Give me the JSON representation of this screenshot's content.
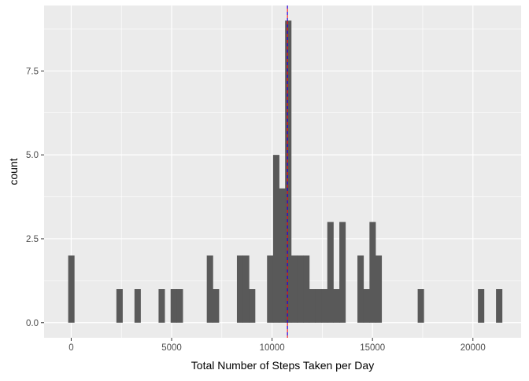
{
  "chart_data": {
    "type": "bar",
    "subtype": "histogram",
    "xlabel": "Total Number of Steps Taken per Day",
    "ylabel": "count",
    "xlim": [
      -1350,
      22400
    ],
    "ylim": [
      -0.45,
      9.45
    ],
    "x_ticks": [
      0,
      5000,
      10000,
      15000,
      20000
    ],
    "x_tick_labels": [
      "0",
      "5000",
      "10000",
      "15000",
      "20000"
    ],
    "y_ticks": [
      0,
      2.5,
      5,
      7.5
    ],
    "y_tick_labels": [
      "0.0",
      "2.5",
      "5.0",
      "7.5"
    ],
    "bin_width": 300,
    "bins": [
      {
        "x": 0,
        "count": 2
      },
      {
        "x": 2400,
        "count": 1
      },
      {
        "x": 3300,
        "count": 1
      },
      {
        "x": 4500,
        "count": 1
      },
      {
        "x": 5100,
        "count": 1
      },
      {
        "x": 5400,
        "count": 1
      },
      {
        "x": 6900,
        "count": 2
      },
      {
        "x": 7200,
        "count": 1
      },
      {
        "x": 8400,
        "count": 2
      },
      {
        "x": 8700,
        "count": 2
      },
      {
        "x": 9000,
        "count": 1
      },
      {
        "x": 9900,
        "count": 2
      },
      {
        "x": 10200,
        "count": 5
      },
      {
        "x": 10500,
        "count": 4
      },
      {
        "x": 10800,
        "count": 9
      },
      {
        "x": 11100,
        "count": 2
      },
      {
        "x": 11400,
        "count": 2
      },
      {
        "x": 11700,
        "count": 2
      },
      {
        "x": 12000,
        "count": 1
      },
      {
        "x": 12300,
        "count": 1
      },
      {
        "x": 12600,
        "count": 1
      },
      {
        "x": 12900,
        "count": 3
      },
      {
        "x": 13200,
        "count": 1
      },
      {
        "x": 13500,
        "count": 3
      },
      {
        "x": 14400,
        "count": 2
      },
      {
        "x": 14700,
        "count": 1
      },
      {
        "x": 15000,
        "count": 3
      },
      {
        "x": 15300,
        "count": 2
      },
      {
        "x": 17400,
        "count": 1
      },
      {
        "x": 20400,
        "count": 1
      },
      {
        "x": 21300,
        "count": 1
      }
    ],
    "reference_lines": [
      {
        "x": 10766,
        "color": "#ff0000",
        "style": "solid"
      },
      {
        "x": 10766,
        "color": "#0000ff",
        "style": "dashed"
      }
    ],
    "colors": {
      "panel_background": "#ebebeb",
      "grid": "#ffffff",
      "bar_fill": "#595959",
      "axis_text": "#4d4d4d",
      "title_text": "#000000"
    },
    "grid": true,
    "legend": "none"
  }
}
